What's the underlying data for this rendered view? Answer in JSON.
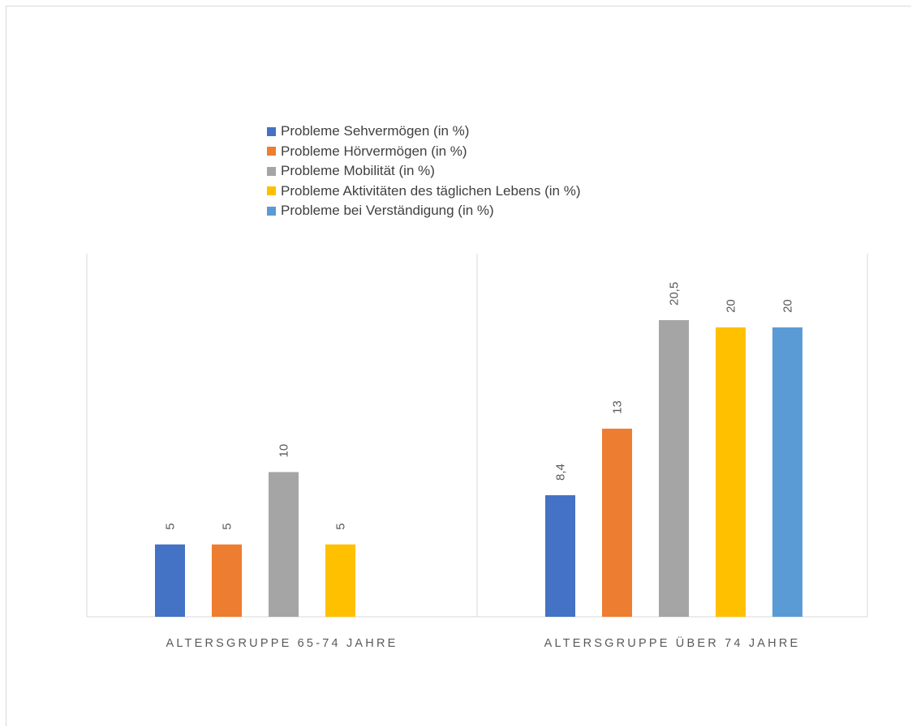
{
  "chart_data": {
    "type": "bar",
    "categories": [
      "ALTERSGRUPPE 65-74 JAHRE",
      "ALTERSGRUPPE ÜBER 74 JAHRE"
    ],
    "series": [
      {
        "name": "Probleme Sehvermögen (in %)",
        "color": "#4472c4",
        "values": [
          5,
          8.4
        ],
        "labels": [
          "5",
          "8,4"
        ]
      },
      {
        "name": "Probleme Hörvermögen (in %)",
        "color": "#ed7d31",
        "values": [
          5,
          13
        ],
        "labels": [
          "5",
          "13"
        ]
      },
      {
        "name": "Probleme Mobilität (in %)",
        "color": "#a5a5a5",
        "values": [
          10,
          20.5
        ],
        "labels": [
          "10",
          "20,5"
        ]
      },
      {
        "name": "Probleme Aktivitäten des täglichen Lebens (in %)",
        "color": "#ffc000",
        "values": [
          5,
          20
        ],
        "labels": [
          "5",
          "20"
        ]
      },
      {
        "name": "Probleme bei Verständigung (in %)",
        "color": "#5b9bd5",
        "values": [
          null,
          20
        ],
        "labels": [
          null,
          "20"
        ]
      }
    ],
    "ylim": [
      0,
      20.5
    ],
    "grid": false,
    "legend_position": "top",
    "data_labels": "rotated"
  }
}
